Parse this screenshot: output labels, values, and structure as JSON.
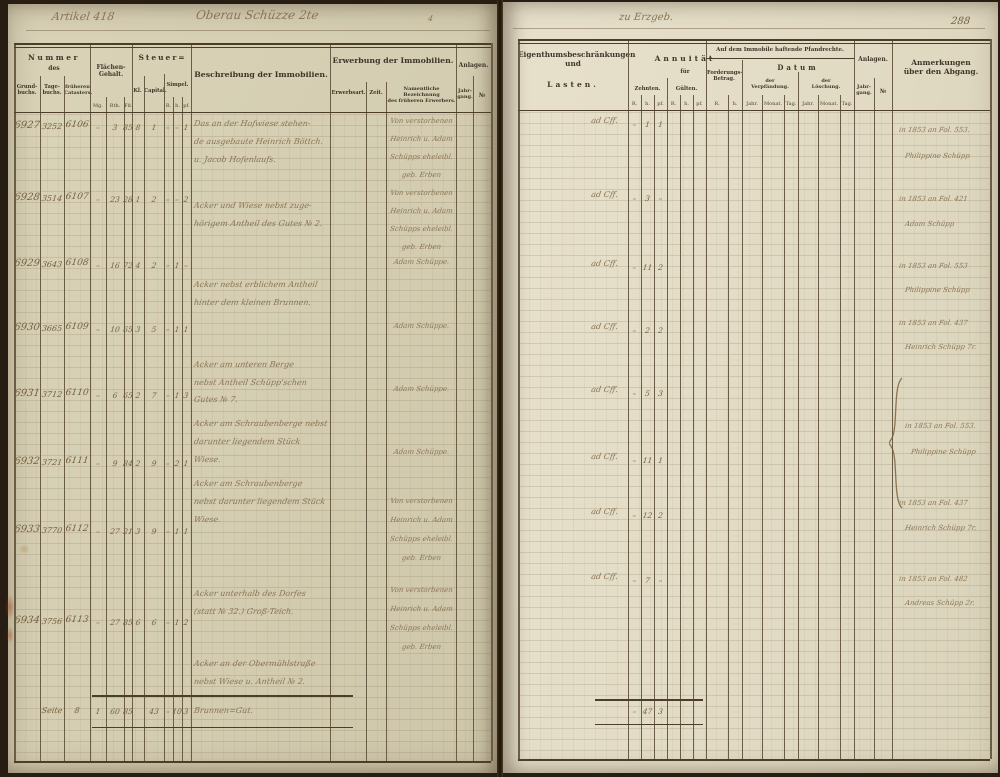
{
  "document": {
    "page_number": "288",
    "handwritten_top": {
      "left": "Artikel 418",
      "center": "Oberau Schüzze 2te",
      "center_mark": "4",
      "right": "zu Erzgeb."
    }
  },
  "left_table": {
    "header": {
      "nummer": "Nummer",
      "des": "des",
      "grundbuchs": "Grund-\nbuchs.",
      "tagebuchs": "Tage-\nbuchs.",
      "catasters": "früheren\nCatasters.",
      "flaechen": "Flächen-\nGehalt.",
      "flaechen_units": [
        "Mg.",
        "Rth.",
        "Fß."
      ],
      "steuer": "Steuer=",
      "steuer_kl": "Kl.",
      "steuer_capital": "Capital.",
      "steuer_simpel": "Simpel.",
      "simpel_units": [
        "R.",
        "h.",
        "pf."
      ],
      "beschreibung": "Beschreibung der Immobilien.",
      "erwerbung": "Erwerbung der Immobilien.",
      "erwerbsart": "Erwerbsart.",
      "zeit": "Zeit.",
      "namentlich": "Namentliche Bezeichnung\ndes früheren Erwerbers.",
      "anlagen": "Anlagen.",
      "jahrgang": "Jahr-\ngang.",
      "nummer_zeichen": "№"
    },
    "rows": [
      {
        "gb": "6927",
        "tb": "3252",
        "cat": "6106",
        "flaeche": [
          "–",
          "3",
          "85"
        ],
        "steuer": [
          "8",
          "1",
          "–",
          "–",
          "1"
        ],
        "beschreibung": [
          "Das an der Hofwiese stehen-",
          "de ausgebaute Heinrich Böttch.",
          "u. Jacob Hofenlaufs."
        ],
        "erwerber": [
          "Von verstorbenen",
          "Heinrich u. Adam",
          "Schüpps eheleibl.",
          "geb. Erben"
        ]
      },
      {
        "gb": "6928",
        "tb": "3514",
        "cat": "6107",
        "flaeche": [
          "–",
          "23",
          "28"
        ],
        "steuer": [
          "1",
          "2",
          "–",
          "–",
          "2"
        ],
        "beschreibung": [
          "Acker und Wiese nebst zuge-",
          "hörigem Antheil des Gutes № 2."
        ],
        "erwerber": [
          "Von verstorbenen",
          "Heinrich u. Adam",
          "Schüpps eheleibl.",
          "geb. Erben"
        ]
      },
      {
        "gb": "6929",
        "tb": "3643",
        "cat": "6108",
        "flaeche": [
          "–",
          "16",
          "72"
        ],
        "steuer": [
          "4",
          "2",
          "–",
          "1",
          "–"
        ],
        "beschreibung": [
          "Acker nebst erblichem Antheil",
          "hinter dem kleinen Brunnen."
        ],
        "erwerber": [
          "Adam Schüppe."
        ]
      },
      {
        "gb": "6930",
        "tb": "3665",
        "cat": "6109",
        "flaeche": [
          "–",
          "10",
          "65"
        ],
        "steuer": [
          "3",
          "5",
          "–",
          "1",
          "1"
        ],
        "beschreibung": [
          "Acker am unteren Berge",
          "nebst Antheil Schüpp'schen",
          "Gutes № 7."
        ],
        "erwerber": [
          "Adam Schüppe."
        ]
      },
      {
        "gb": "6931",
        "tb": "3712",
        "cat": "6110",
        "flaeche": [
          "–",
          "6",
          "65"
        ],
        "steuer": [
          "2",
          "7",
          "–",
          "1",
          "3"
        ],
        "beschreibung": [
          "Acker am Schraubenberge nebst",
          "darunter liegendem Stück",
          "Wiese."
        ],
        "erwerber": [
          "Adam Schüppe."
        ]
      },
      {
        "gb": "6932",
        "tb": "3721",
        "cat": "6111",
        "flaeche": [
          "–",
          "9",
          "84"
        ],
        "steuer": [
          "2",
          "9",
          "–",
          "2",
          "1"
        ],
        "beschreibung": [
          "Acker am Schraubenberge",
          "nebst darunter liegendem Stück",
          "Wiese."
        ],
        "erwerber": [
          "Adam Schüppe."
        ]
      },
      {
        "gb": "6933",
        "tb": "3770",
        "cat": "6112",
        "flaeche": [
          "–",
          "27",
          "21"
        ],
        "steuer": [
          "3",
          "9",
          "–",
          "1",
          "1"
        ],
        "beschreibung": [
          "Acker unterhalb des Dorfes",
          "(statt № 32.) Groß-Teich."
        ],
        "erwerber": [
          "Von verstorbenen",
          "Heinrich u. Adam",
          "Schüpps eheleibl.",
          "geb. Erben"
        ]
      },
      {
        "gb": "6934",
        "tb": "3756",
        "cat": "6113",
        "flaeche": [
          "–",
          "27",
          "85"
        ],
        "steuer": [
          "6",
          "6",
          "–",
          "1",
          "2"
        ],
        "beschreibung": [
          "Acker an der Obermühlstraße",
          "nebst Wiese u. Antheil № 2."
        ],
        "erwerber": [
          "Von verstorbenen",
          "Heinrich u. Adam",
          "Schüpps eheleibl.",
          "geb. Erben"
        ]
      }
    ],
    "summary": {
      "label": "Seite",
      "label2": "8",
      "flaeche": [
        "1",
        "60",
        "85"
      ],
      "steuer": [
        "",
        "43",
        "–",
        "10",
        "3"
      ],
      "beschreibung": "Brunnen=Gut."
    }
  },
  "right_table": {
    "header": {
      "eigenthum": "Eigenthumsbeschränkungen\nund",
      "lasten": "Lasten.",
      "annuitaet": "Annuität",
      "fuer": "für",
      "zehnten": "Zehnten.",
      "guelten": "Gülten.",
      "units3": [
        "R.",
        "h.",
        "pf."
      ],
      "pfandrechte": "Auf dem Immobile haftende Pfandrechte.",
      "forderung": "Forderungs-\nBetrag.",
      "units2": [
        "R.",
        "h."
      ],
      "datum": "Datum",
      "verpfaendung": "der\nVerpfändung.",
      "loeschung": "der\nLöschung.",
      "datum_units": [
        "Jahr.",
        "Monat.",
        "Tag."
      ],
      "anlagen": "Anlagen.",
      "jahrgang": "Jahr-\ngang.",
      "nummer_zeichen": "№",
      "anmerkungen": "Anmerkungen\nüber den Abgang."
    },
    "rows": [
      {
        "eigenthum": "ad Cff.",
        "annuitaet": [
          "–",
          "1",
          "1"
        ],
        "anmerkung": [
          "in 1853 an Fol. 553.",
          "Philippine Schüpp"
        ]
      },
      {
        "eigenthum": "ad Cff.",
        "annuitaet": [
          "–",
          "3",
          "–"
        ],
        "anmerkung": [
          "in 1853 an Fol. 421",
          "Adam Schüpp"
        ]
      },
      {
        "eigenthum": "ad Cff.",
        "annuitaet": [
          "–",
          "11",
          "2"
        ],
        "anmerkung": [
          "in 1853 an Fol. 553",
          "Philippine Schüpp"
        ]
      },
      {
        "eigenthum": "ad Cff.",
        "annuitaet": [
          "–",
          "2",
          "2"
        ],
        "anmerkung": [
          "in 1853 an Fol. 437",
          "Heinrich Schüpp 7r."
        ]
      },
      {
        "eigenthum": "ad Cff.",
        "annuitaet": [
          "–",
          "5",
          "3"
        ],
        "anmerkung": []
      },
      {
        "eigenthum": "ad Cff.",
        "annuitaet": [
          "–",
          "11",
          "1"
        ],
        "anmerkung": []
      },
      {
        "eigenthum": "ad Cff.",
        "annuitaet": [
          "–",
          "12",
          "2"
        ],
        "anmerkung": [
          "in 1853 an Fol. 437",
          "Heinrich Schüpp 7r."
        ]
      },
      {
        "eigenthum": "ad Cff.",
        "annuitaet": [
          "–",
          "7",
          "–"
        ],
        "anmerkung": [
          "in 1853 an Fol. 482",
          "Andreas Schüpp 2r."
        ]
      }
    ],
    "bracket_note": [
      "in 1853 an Fol. 553.",
      "Philippine Schüpp"
    ],
    "summary": {
      "annuitaet": [
        "–",
        "47",
        "3"
      ]
    }
  }
}
